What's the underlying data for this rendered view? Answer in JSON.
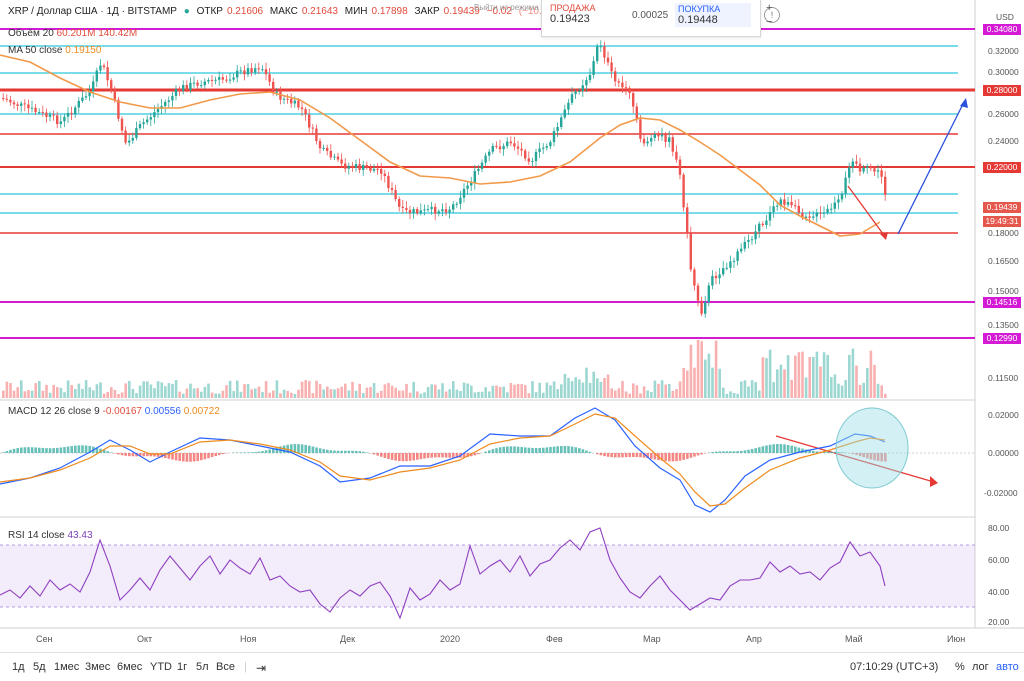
{
  "header": {
    "symbol": "XRP / Доллар США · 1Д · BITSTAMP",
    "ohlc_open_label": "ОТКР",
    "ohlc_open": "0.21606",
    "ohlc_high_label": "МАКС",
    "ohlc_high": "0.21643",
    "ohlc_low_label": "МИН",
    "ohlc_low": "0.17898",
    "ohlc_close_label": "ЗАКР",
    "ohlc_close": "0.19439",
    "ohlc_change": "−0.02",
    "ohlc_change_pct": "(−10.24%)",
    "exit_text": "Выйти из режима"
  },
  "indicators": {
    "volume_label": "Объём 20",
    "volume_v1": "60.201M",
    "volume_v2": "140.42M",
    "ma_label": "MA 50 close",
    "ma_value": "0.19150",
    "macd_label": "MACD 12 26 close 9",
    "macd_v1": "-0.00167",
    "macd_v2": "0.00556",
    "macd_v3": "0.00722",
    "rsi_label": "RSI 14 close",
    "rsi_value": "43.43"
  },
  "trade": {
    "sell_label": "ПРОДАЖА",
    "sell_price": "0.19423",
    "spread": "0.00025",
    "buy_label": "ПОКУПКА",
    "buy_price": "0.19448"
  },
  "price_axis": {
    "currency": "USD",
    "ticks": [
      "0.32000",
      "0.30000",
      "0.26000",
      "0.24000",
      "0.18000",
      "0.16500",
      "0.15000",
      "0.13500",
      "0.11500"
    ],
    "macd_ticks": [
      "0.02000",
      "0.00000",
      "-0.02000"
    ],
    "rsi_ticks": [
      "80.00",
      "60.00",
      "40.00",
      "20.00"
    ]
  },
  "price_tags": [
    {
      "text": "0.34080",
      "color": "#d41ad4"
    },
    {
      "text": "0.28000",
      "color": "#e53935"
    },
    {
      "text": "0.22000",
      "color": "#e53935"
    },
    {
      "text": "0.19439",
      "color": "#e53935"
    },
    {
      "text": "19:49:31",
      "color": "#e53935"
    },
    {
      "text": "0.14516",
      "color": "#d41ad4"
    },
    {
      "text": "0.12990",
      "color": "#d41ad4"
    }
  ],
  "months": [
    "Сен",
    "Окт",
    "Ноя",
    "Дек",
    "2020",
    "Фев",
    "Мар",
    "Апр",
    "Май",
    "Июн"
  ],
  "bottom": {
    "timeframes": [
      "1д",
      "5д",
      "1мес",
      "3мес",
      "6мес",
      "YTD",
      "1г",
      "5л",
      "Все"
    ],
    "time": "07:10:29 (UTC+3)",
    "percent": "%",
    "log": "лог",
    "auto": "авто"
  }
}
